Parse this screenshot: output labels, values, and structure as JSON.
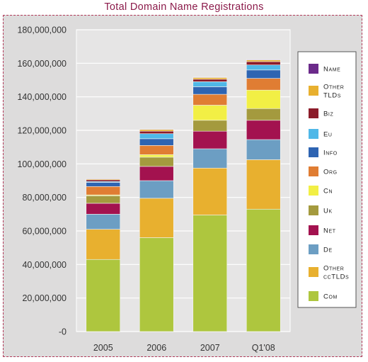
{
  "colors": {
    "Com": "#aec63e",
    "Other ccTLDs": "#e8b02f",
    "De": "#6c9ec3",
    "Net": "#a3124f",
    "Uk": "#a49a3e",
    "Cn": "#f2ef45",
    "Org": "#e07d33",
    "Info": "#2e64b2",
    "Eu": "#4fb8e8",
    "Biz": "#8c1c2a",
    "Other TLDs": "#e8b02f",
    "Name": "#6b2a8a"
  },
  "chart_data": {
    "type": "bar",
    "stacked": true,
    "title": "Total Domain Name Registrations",
    "categories": [
      "2005",
      "2006",
      "2007",
      "Q1'08"
    ],
    "ylim": [
      0,
      180000000
    ],
    "yticks": [
      "-0",
      "20,000,000",
      "40,000,000",
      "60,000,000",
      "80,000,000",
      "100,000,000",
      "120,000,000",
      "140,000,000",
      "160,000,000",
      "180,000,000"
    ],
    "grid": true,
    "legend_position": "right",
    "series": [
      {
        "name": "Com",
        "values": [
          43000000,
          56000000,
          69500000,
          73000000
        ]
      },
      {
        "name": "Other ccTLDs",
        "values": [
          18000000,
          23500000,
          28000000,
          29500000
        ]
      },
      {
        "name": "De",
        "values": [
          9000000,
          10500000,
          11500000,
          12000000
        ]
      },
      {
        "name": "Net",
        "values": [
          6500000,
          8500000,
          10500000,
          11500000
        ]
      },
      {
        "name": "Uk",
        "values": [
          4500000,
          5500000,
          6500000,
          7000000
        ]
      },
      {
        "name": "Cn",
        "values": [
          500000,
          1500000,
          9000000,
          11000000
        ]
      },
      {
        "name": "Org",
        "values": [
          5000000,
          5500000,
          6500000,
          7000000
        ]
      },
      {
        "name": "Info",
        "values": [
          2500000,
          4000000,
          4500000,
          5000000
        ]
      },
      {
        "name": "Eu",
        "values": [
          500000,
          3000000,
          3000000,
          3000000
        ]
      },
      {
        "name": "Biz",
        "values": [
          1000000,
          1500000,
          1500000,
          2000000
        ]
      },
      {
        "name": "Other TLDs",
        "values": [
          500000,
          1000000,
          1000000,
          1000000
        ]
      },
      {
        "name": "Name",
        "values": [
          300000,
          300000,
          300000,
          300000
        ]
      }
    ],
    "legend": [
      {
        "name": "Name",
        "lines": [
          "Name"
        ]
      },
      {
        "name": "Other TLDs",
        "lines": [
          "Other",
          "TLDs"
        ]
      },
      {
        "name": "Biz",
        "lines": [
          "Biz"
        ]
      },
      {
        "name": "Eu",
        "lines": [
          "Eu"
        ]
      },
      {
        "name": "Info",
        "lines": [
          "Info"
        ]
      },
      {
        "name": "Org",
        "lines": [
          "Org"
        ]
      },
      {
        "name": "Cn",
        "lines": [
          "Cn"
        ]
      },
      {
        "name": "Uk",
        "lines": [
          "Uk"
        ]
      },
      {
        "name": "Net",
        "lines": [
          "Net"
        ]
      },
      {
        "name": "De",
        "lines": [
          "De"
        ]
      },
      {
        "name": "Other ccTLDs",
        "lines": [
          "Other",
          "ccTLDs"
        ]
      },
      {
        "name": "Com",
        "lines": [
          "Com"
        ]
      }
    ]
  }
}
